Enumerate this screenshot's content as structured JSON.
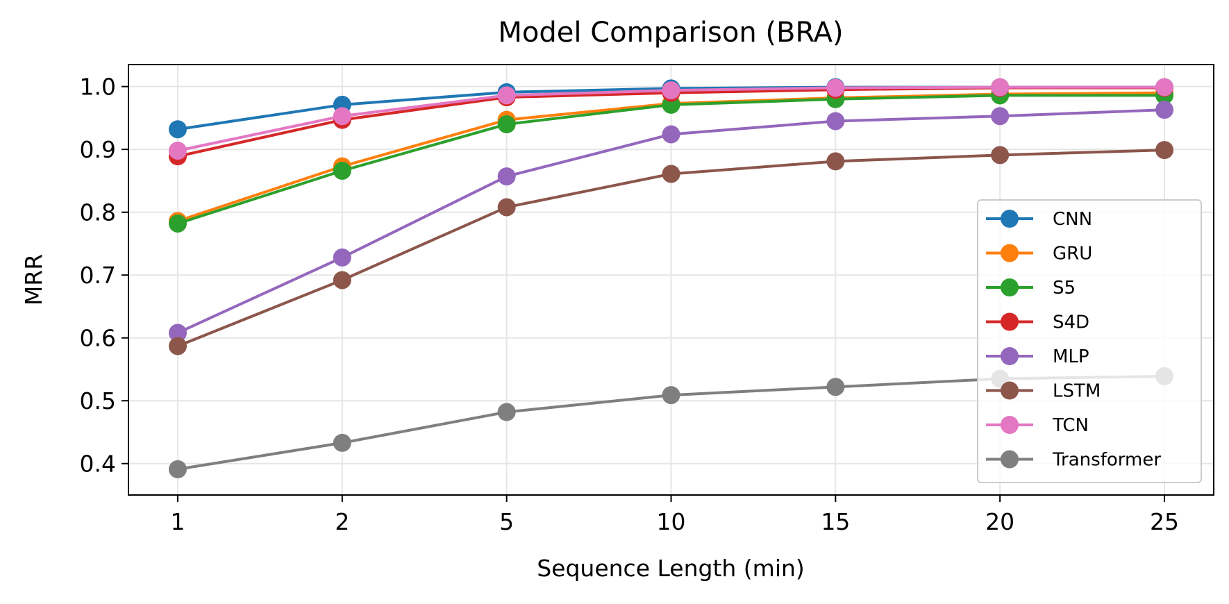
{
  "chart_data": {
    "type": "line",
    "title": "Model Comparison (BRA)",
    "xlabel": "Sequence Length (min)",
    "ylabel": "MRR",
    "categories": [
      "1",
      "2",
      "5",
      "10",
      "15",
      "20",
      "25"
    ],
    "ylim": [
      0.35,
      1.035
    ],
    "yticks": [
      "0.4",
      "0.5",
      "0.6",
      "0.7",
      "0.8",
      "0.9",
      "1.0"
    ],
    "grid": true,
    "legend_position": "lower-right",
    "series": [
      {
        "name": "CNN",
        "color": "#1f77b4",
        "values": [
          0.932,
          0.971,
          0.991,
          0.997,
          0.999,
          0.999,
          0.999
        ]
      },
      {
        "name": "GRU",
        "color": "#ff7f0e",
        "values": [
          0.786,
          0.873,
          0.947,
          0.973,
          0.982,
          0.988,
          0.99
        ]
      },
      {
        "name": "S5",
        "color": "#2ca02c",
        "values": [
          0.782,
          0.866,
          0.94,
          0.971,
          0.98,
          0.986,
          0.986
        ]
      },
      {
        "name": "S4D",
        "color": "#d62728",
        "values": [
          0.889,
          0.947,
          0.983,
          0.99,
          0.995,
          0.998,
          0.998
        ]
      },
      {
        "name": "MLP",
        "color": "#9467bd",
        "values": [
          0.608,
          0.728,
          0.857,
          0.924,
          0.945,
          0.953,
          0.963
        ]
      },
      {
        "name": "LSTM",
        "color": "#8c564b",
        "values": [
          0.587,
          0.692,
          0.808,
          0.861,
          0.881,
          0.891,
          0.899
        ]
      },
      {
        "name": "TCN",
        "color": "#e377c2",
        "values": [
          0.898,
          0.953,
          0.986,
          0.994,
          0.998,
          0.999,
          0.999
        ]
      },
      {
        "name": "Transformer",
        "color": "#7f7f7f",
        "values": [
          0.391,
          0.433,
          0.482,
          0.509,
          0.522,
          0.535,
          0.539
        ]
      }
    ]
  }
}
